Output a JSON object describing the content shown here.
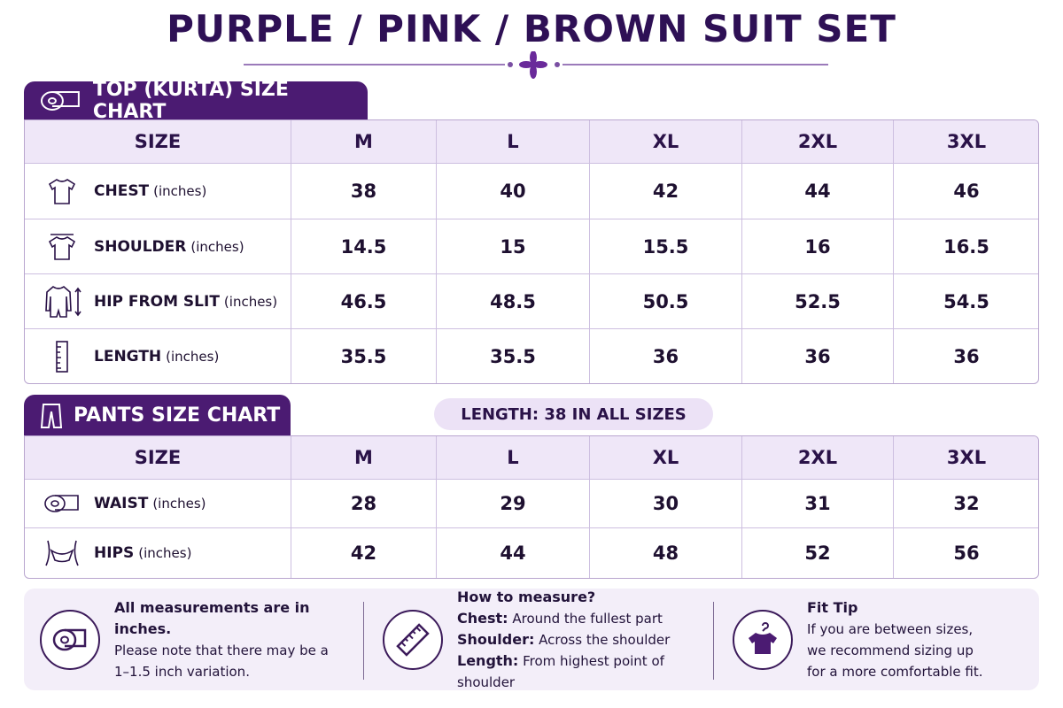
{
  "header": {
    "title": "PURPLE / PINK / BROWN SUIT SET"
  },
  "top": {
    "title": "TOP (KURTA) SIZE CHART",
    "columns": [
      "SIZE",
      "M",
      "L",
      "XL",
      "2XL",
      "3XL"
    ],
    "rows": [
      {
        "label": "CHEST",
        "unit": "(inches)",
        "values": [
          38,
          40,
          42,
          44,
          46
        ]
      },
      {
        "label": "SHOULDER",
        "unit": "(inches)",
        "values": [
          14.5,
          15,
          15.5,
          16,
          16.5
        ]
      },
      {
        "label": "HIP FROM SLIT",
        "unit": "(inches)",
        "values": [
          46.5,
          48.5,
          50.5,
          52.5,
          54.5
        ]
      },
      {
        "label": "LENGTH",
        "unit": "(inches)",
        "values": [
          35.5,
          35.5,
          36,
          36,
          36
        ]
      }
    ]
  },
  "pants": {
    "title": "PANTS SIZE CHART",
    "note": "LENGTH: 38 IN ALL SIZES",
    "columns": [
      "SIZE",
      "M",
      "L",
      "XL",
      "2XL",
      "3XL"
    ],
    "rows": [
      {
        "label": "WAIST",
        "unit": "(inches)",
        "values": [
          28,
          29,
          30,
          31,
          32
        ]
      },
      {
        "label": "HIPS",
        "unit": "(inches)",
        "values": [
          42,
          44,
          48,
          52,
          56
        ]
      }
    ]
  },
  "footer": {
    "measurements": {
      "title": "All measurements are in inches.",
      "lines": [
        "Please note that there may be a",
        "1–1.5 inch variation."
      ]
    },
    "how_to": {
      "title": "How to measure?",
      "items": [
        {
          "label": "Chest:",
          "text": "Around the fullest part"
        },
        {
          "label": "Shoulder:",
          "text": "Across the shoulder"
        },
        {
          "label": "Length:",
          "text": "From highest point of shoulder"
        }
      ]
    },
    "fit_tip": {
      "title": "Fit Tip",
      "lines": [
        "If you are between sizes,",
        "we recommend sizing up",
        "for a more comfortable fit."
      ]
    }
  }
}
